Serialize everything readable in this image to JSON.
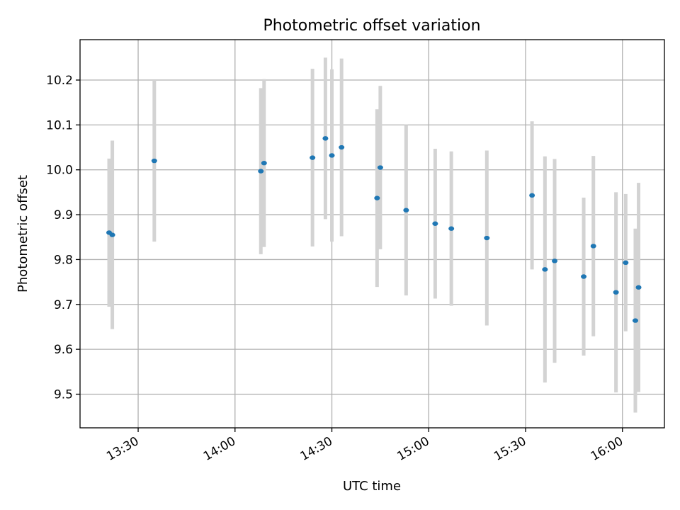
{
  "chart_data": {
    "type": "scatter",
    "title": "Photometric offset variation",
    "xlabel": "UTC time",
    "ylabel": "Photometric offset",
    "grid": true,
    "xlim": [
      "13:12",
      "16:13"
    ],
    "ylim": [
      9.425,
      10.29
    ],
    "x_ticks": [
      "13:30",
      "14:00",
      "14:30",
      "15:00",
      "15:30",
      "16:00"
    ],
    "y_ticks": [
      9.5,
      9.6,
      9.7,
      9.8,
      9.9,
      10.0,
      10.1,
      10.2
    ],
    "marker_color": "#1f77b4",
    "errorbar_color": "#d3d3d3",
    "points": [
      {
        "time": "13:21",
        "value": 9.86,
        "error": 0.165
      },
      {
        "time": "13:22",
        "value": 9.855,
        "error": 0.21
      },
      {
        "time": "13:35",
        "value": 10.02,
        "error": 0.18
      },
      {
        "time": "14:08",
        "value": 9.997,
        "error": 0.185
      },
      {
        "time": "14:09",
        "value": 10.015,
        "error": 0.187
      },
      {
        "time": "14:24",
        "value": 10.027,
        "error": 0.198
      },
      {
        "time": "14:28",
        "value": 10.07,
        "error": 0.18
      },
      {
        "time": "14:30",
        "value": 10.032,
        "error": 0.192
      },
      {
        "time": "14:33",
        "value": 10.05,
        "error": 0.198
      },
      {
        "time": "14:44",
        "value": 9.937,
        "error": 0.198
      },
      {
        "time": "14:45",
        "value": 10.005,
        "error": 0.182
      },
      {
        "time": "14:53",
        "value": 9.91,
        "error": 0.19
      },
      {
        "time": "15:02",
        "value": 9.88,
        "error": 0.167
      },
      {
        "time": "15:07",
        "value": 9.869,
        "error": 0.172
      },
      {
        "time": "15:18",
        "value": 9.848,
        "error": 0.195
      },
      {
        "time": "15:32",
        "value": 9.943,
        "error": 0.165
      },
      {
        "time": "15:36",
        "value": 9.778,
        "error": 0.252
      },
      {
        "time": "15:39",
        "value": 9.797,
        "error": 0.227
      },
      {
        "time": "15:48",
        "value": 9.762,
        "error": 0.176
      },
      {
        "time": "15:51",
        "value": 9.83,
        "error": 0.201
      },
      {
        "time": "15:58",
        "value": 9.727,
        "error": 0.223
      },
      {
        "time": "16:01",
        "value": 9.793,
        "error": 0.153
      },
      {
        "time": "16:04",
        "value": 9.664,
        "error": 0.205
      },
      {
        "time": "16:05",
        "value": 9.738,
        "error": 0.233
      }
    ]
  }
}
